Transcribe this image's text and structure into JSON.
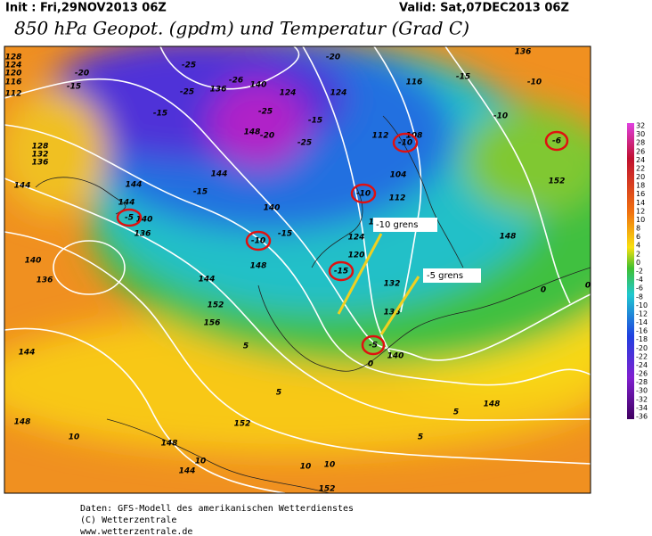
{
  "header": {
    "init": "Init : Fri,29NOV2013 06Z",
    "valid": "Valid: Sat,07DEC2013 06Z",
    "title": "850 hPa Geopot. (gpdm) und Temperatur (Grad C)"
  },
  "annotations": [
    "-10 grens",
    "-5 grens"
  ],
  "colorbar": {
    "labels": [
      "32",
      "30",
      "28",
      "26",
      "24",
      "22",
      "20",
      "18",
      "16",
      "14",
      "12",
      "10",
      "8",
      "6",
      "4",
      "2",
      "0",
      "-2",
      "-4",
      "-6",
      "-8",
      "-10",
      "-12",
      "-14",
      "-16",
      "-18",
      "-20",
      "-22",
      "-24",
      "-26",
      "-28",
      "-30",
      "-32",
      "-34",
      "-36"
    ]
  },
  "contour_labels": [
    "-15",
    "-20",
    "-25",
    "-25",
    "-26",
    "-25",
    "-20",
    "-25",
    "-20",
    "-15",
    "-15",
    "-10",
    "-10",
    "-15",
    "-15",
    "-15",
    "-10",
    "-5",
    "-10",
    "-6",
    "-10",
    "-15",
    "-5",
    "0",
    "0",
    "0",
    "5",
    "5",
    "5",
    "5",
    "10",
    "10",
    "10",
    "10",
    "128",
    "124",
    "120",
    "116",
    "112",
    "128",
    "132",
    "136",
    "144",
    "140",
    "136",
    "140",
    "136",
    "144",
    "144",
    "140",
    "148",
    "144",
    "152",
    "156",
    "144",
    "148",
    "148",
    "144",
    "152",
    "152",
    "148",
    "152",
    "148",
    "140",
    "136",
    "132",
    "124",
    "120",
    "116",
    "112",
    "104",
    "108",
    "112",
    "124",
    "124",
    "136",
    "140",
    "148",
    "144",
    "136",
    "116"
  ],
  "footer": [
    "Daten: GFS-Modell des amerikanischen Wetterdienstes",
    "(C) Wetterzentrale",
    "www.wetterzentrale.de"
  ]
}
